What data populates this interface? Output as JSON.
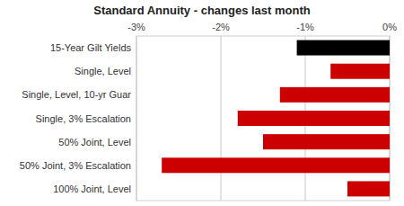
{
  "chart_data": {
    "type": "bar",
    "orientation": "horizontal",
    "title": "Standard Annuity - changes last month",
    "categories": [
      "15-Year Gilt Yields",
      "Single, Level",
      "Single, Level, 10-yr Guar",
      "Single, 3% Escalation",
      "50% Joint, Level",
      "50% Joint, 3% Escalation",
      "100% Joint, Level"
    ],
    "values": [
      -1.1,
      -0.7,
      -1.3,
      -1.8,
      -1.5,
      -2.7,
      -0.5
    ],
    "colors": [
      "#000000",
      "#cc0000",
      "#cc0000",
      "#cc0000",
      "#cc0000",
      "#cc0000",
      "#cc0000"
    ],
    "xlim": [
      -3.0,
      0.0
    ],
    "xticks": [
      {
        "value": -3.0,
        "label": "-3%"
      },
      {
        "value": -2.0,
        "label": "-2%"
      },
      {
        "value": -1.0,
        "label": "-1%"
      },
      {
        "value": 0.0,
        "label": "0%"
      }
    ],
    "grid": true
  }
}
